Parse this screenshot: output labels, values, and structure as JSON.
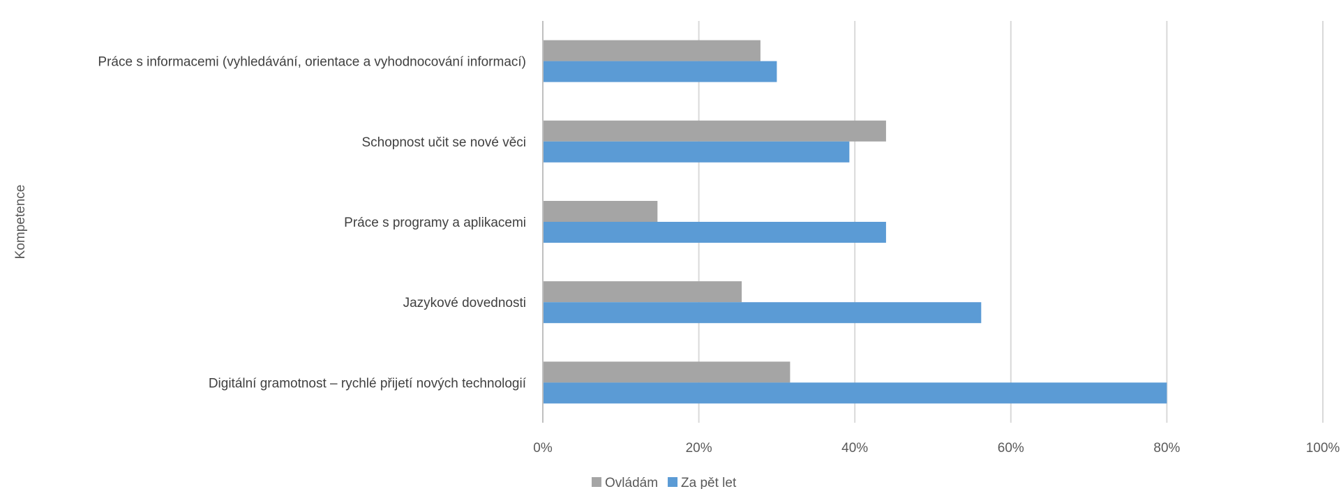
{
  "chart_data": {
    "type": "bar",
    "orientation": "horizontal",
    "categories": [
      "Práce s informacemi (vyhledávání, orientace a vyhodnocování informací)",
      "Schopnost učit se nové věci",
      "Práce s programy a aplikacemi",
      "Jazykové dovednosti",
      "Digitální gramotnost – rychlé přijetí nových technologií"
    ],
    "series": [
      {
        "name": "Ovládám",
        "color": "#a5a5a5",
        "values": [
          27.9,
          44.0,
          14.7,
          25.5,
          31.7
        ]
      },
      {
        "name": "Za pět let",
        "color": "#5b9bd5",
        "values": [
          30.0,
          39.3,
          44.0,
          56.2,
          80.0
        ]
      }
    ],
    "ylabel": "Kompetence",
    "xlim": [
      0,
      100
    ],
    "x_ticks": [
      "0%",
      "20%",
      "40%",
      "60%",
      "80%",
      "100%"
    ],
    "grid": true,
    "legend_position": "bottom"
  }
}
